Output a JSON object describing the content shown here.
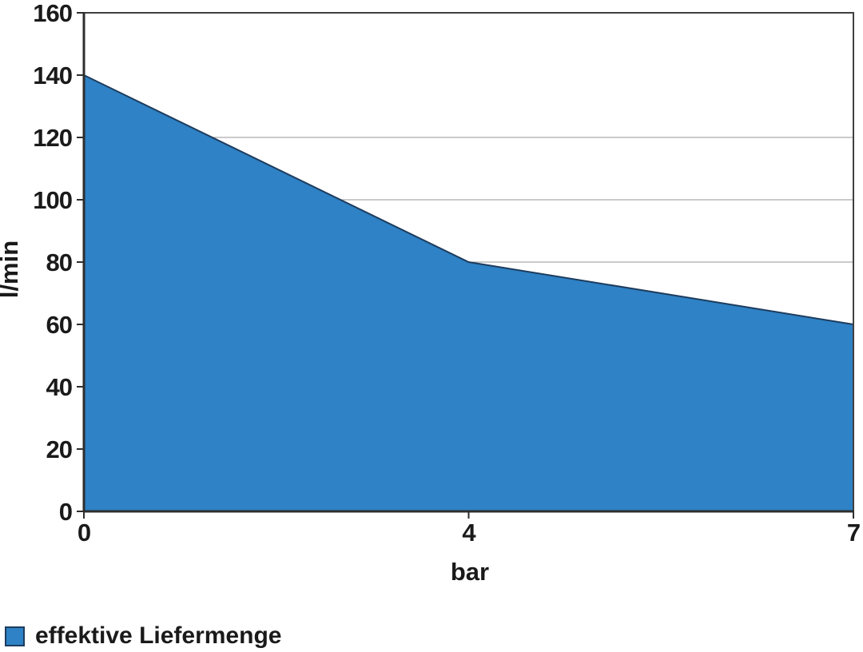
{
  "chart_data": {
    "type": "area",
    "title": "",
    "xlabel": "bar",
    "ylabel": "l/min",
    "categories": [
      "0",
      "4",
      "7"
    ],
    "x_values": [
      0,
      4,
      7
    ],
    "series": [
      {
        "name": "effektive Liefermenge",
        "values": [
          140,
          80,
          60
        ]
      }
    ],
    "ylim": [
      0,
      160
    ],
    "y_ticks": [
      0,
      20,
      40,
      60,
      80,
      100,
      120,
      140,
      160
    ],
    "gridlines_at": [
      20,
      40,
      60,
      80,
      100,
      120
    ],
    "grid": "horizontal",
    "legend_position": "bottom-left",
    "colors": {
      "area_fill": "#2E82C5",
      "series_line": "#1D3C5E",
      "axis": "#2E2E2E",
      "frame": "#404040",
      "gridline": "#AAAAAA",
      "text": "#1A1A1A",
      "background": "#FFFFFF"
    }
  },
  "legend": {
    "items": [
      {
        "label": "effektive Liefermenge",
        "swatch_color": "#2E82C5",
        "swatch_border": "#1D3C5E"
      }
    ]
  }
}
